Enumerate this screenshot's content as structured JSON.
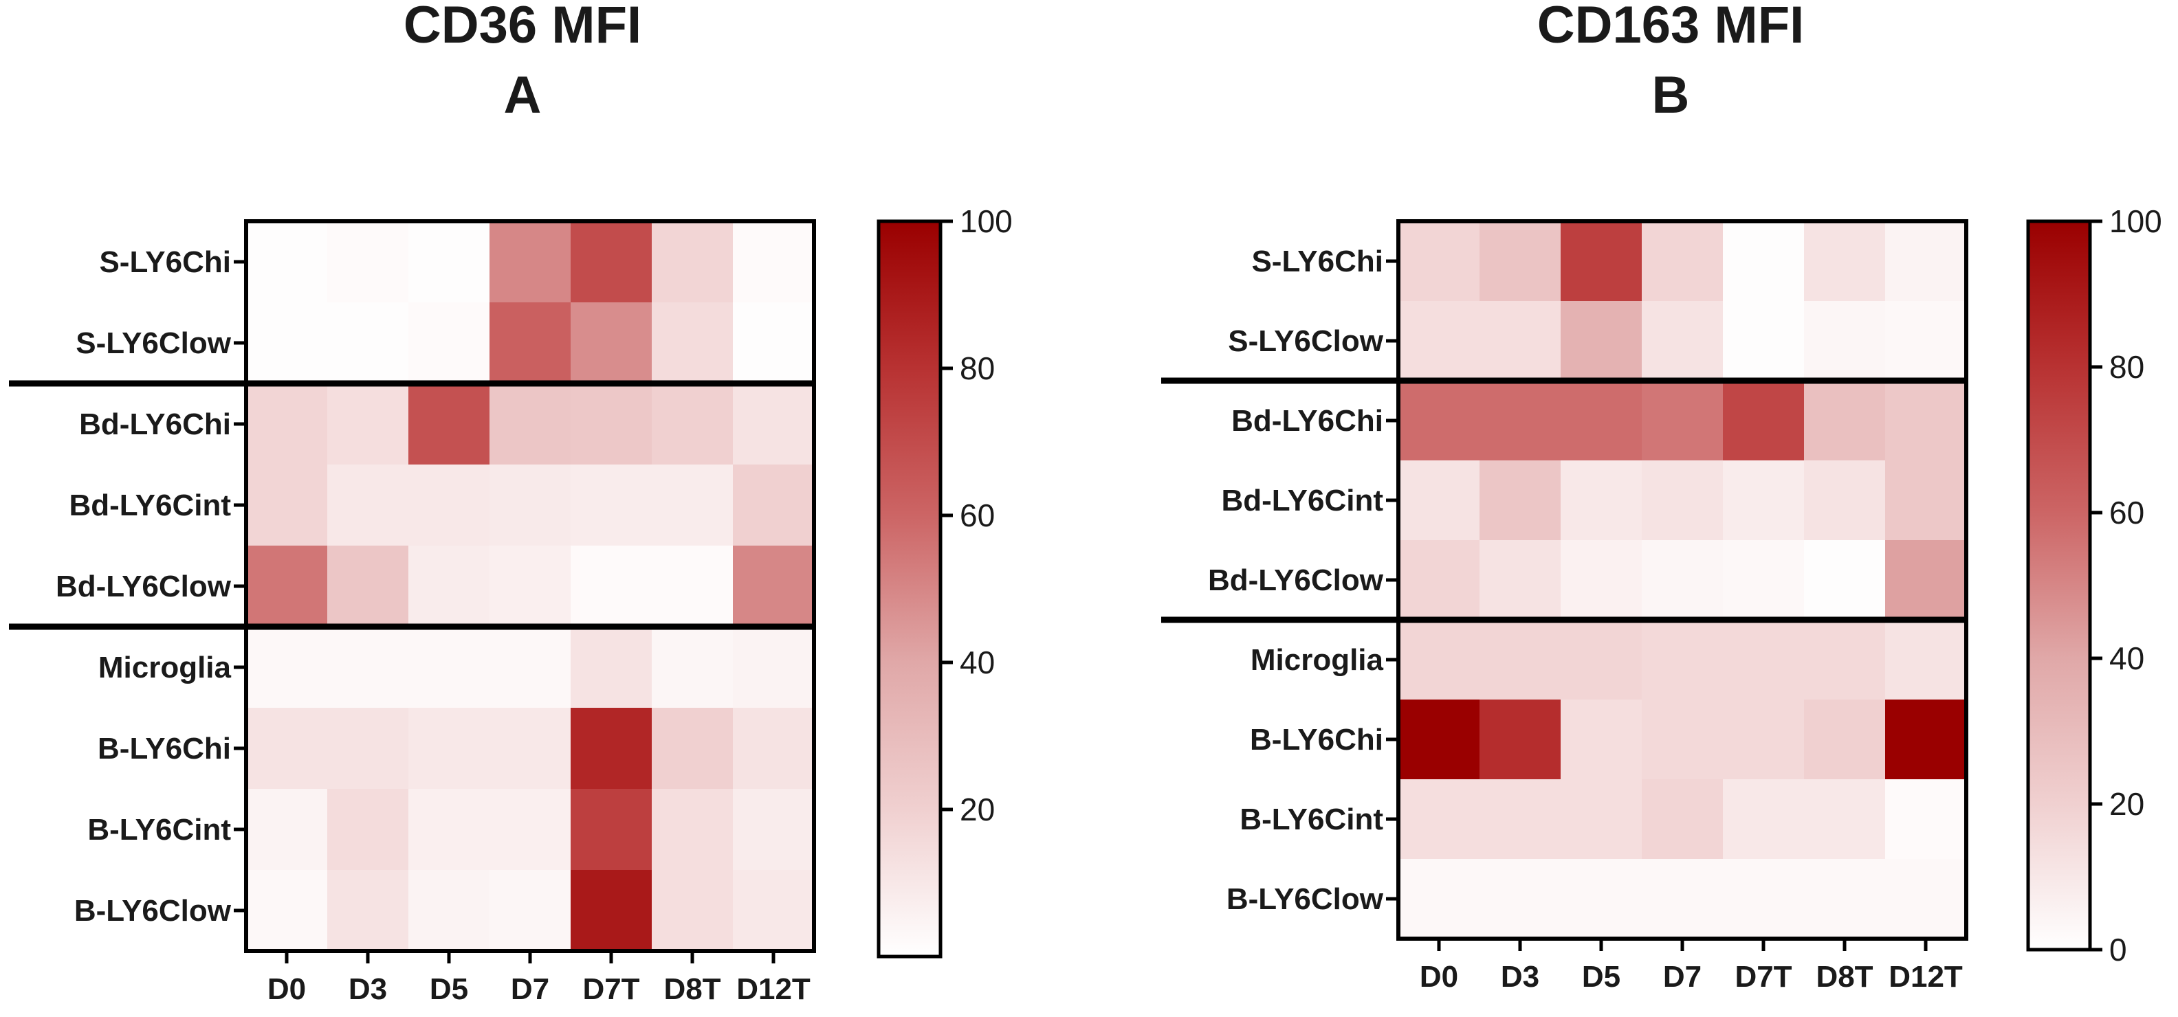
{
  "chart_data": [
    {
      "type": "heatmap",
      "title": "CD36 MFI",
      "panel": "A",
      "rows": [
        "S-LY6Chi",
        "S-LY6Clow",
        "Bd-LY6Chi",
        "Bd-LY6Cint",
        "Bd-LY6Clow",
        "Microglia",
        "B-LY6Chi",
        "B-LY6Cint",
        "B-LY6Clow"
      ],
      "columns": [
        "D0",
        "D3",
        "D5",
        "D7",
        "D7T",
        "D8T",
        "D12T"
      ],
      "values": [
        [
          1,
          2,
          1,
          50,
          70,
          18,
          2
        ],
        [
          1,
          1,
          2,
          62,
          48,
          15,
          1
        ],
        [
          18,
          14,
          68,
          25,
          24,
          20,
          12
        ],
        [
          18,
          10,
          10,
          9,
          8,
          8,
          20
        ],
        [
          55,
          25,
          8,
          7,
          2,
          2,
          50
        ],
        [
          3,
          3,
          3,
          3,
          12,
          4,
          5
        ],
        [
          12,
          12,
          10,
          10,
          85,
          20,
          12
        ],
        [
          5,
          15,
          7,
          7,
          75,
          14,
          8
        ],
        [
          3,
          12,
          5,
          4,
          90,
          14,
          10
        ]
      ],
      "group_separators_after_rows": [
        2,
        5
      ],
      "colorbar": {
        "min": 0,
        "max": 100,
        "ticks": [
          20,
          40,
          60,
          80,
          100
        ],
        "low_color": "#ffffff",
        "high_color": "#9a0000"
      }
    },
    {
      "type": "heatmap",
      "title": "CD163 MFI",
      "panel": "B",
      "rows": [
        "S-LY6Chi",
        "S-LY6Clow",
        "Bd-LY6Chi",
        "Bd-LY6Cint",
        "Bd-LY6Clow",
        "Microglia",
        "B-LY6Chi",
        "B-LY6Cint",
        "B-LY6Clow"
      ],
      "columns": [
        "D0",
        "D3",
        "D5",
        "D7",
        "D7T",
        "D8T",
        "D12T"
      ],
      "values": [
        [
          18,
          26,
          75,
          18,
          1,
          12,
          5
        ],
        [
          14,
          14,
          35,
          12,
          1,
          4,
          3
        ],
        [
          58,
          58,
          58,
          55,
          72,
          28,
          24
        ],
        [
          12,
          25,
          10,
          12,
          8,
          12,
          24
        ],
        [
          18,
          12,
          6,
          4,
          3,
          1,
          42
        ],
        [
          18,
          18,
          18,
          16,
          16,
          16,
          12
        ],
        [
          100,
          82,
          14,
          16,
          16,
          20,
          100
        ],
        [
          14,
          14,
          14,
          18,
          10,
          10,
          2
        ],
        [
          3,
          3,
          3,
          3,
          3,
          3,
          3
        ]
      ],
      "group_separators_after_rows": [
        2,
        5
      ],
      "colorbar": {
        "min": 0,
        "max": 100,
        "ticks": [
          0,
          20,
          40,
          60,
          80,
          100
        ],
        "low_color": "#ffffff",
        "high_color": "#9a0000"
      }
    }
  ]
}
